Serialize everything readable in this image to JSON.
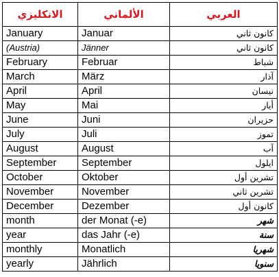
{
  "headers": {
    "english": "الانكليزي",
    "german": "الألماني",
    "arabic": "العربي"
  },
  "rows": [
    {
      "en": "January",
      "de": "Januar",
      "ar": "كانون ثاني"
    },
    {
      "en": "(Austria)",
      "de": "Jänner",
      "ar": "كانون ثاني"
    },
    {
      "en": "February",
      "de": "Februar",
      "ar": "شباط"
    },
    {
      "en": "March",
      "de": "März",
      "ar": "آذار"
    },
    {
      "en": "April",
      "de": "April",
      "ar": "نيسان"
    },
    {
      "en": "May",
      "de": "Mai",
      "ar": "أيار"
    },
    {
      "en": "June",
      "de": "Juni",
      "ar": "حزيران"
    },
    {
      "en": "July",
      "de": "Juli",
      "ar": "تموز"
    },
    {
      "en": "August",
      "de": "August",
      "ar": "آب"
    },
    {
      "en": "September",
      "de": "September",
      "ar": "ايلول"
    },
    {
      "en": "October",
      "de": "Oktober",
      "ar": "تشرين أول"
    },
    {
      "en": "November",
      "de": "November",
      "ar": "تشرين ثاني"
    },
    {
      "en": "December",
      "de": "Dezember",
      "ar": "كانون أول"
    },
    {
      "en": "month",
      "de": "der Monat (-e)",
      "ar": "شهر"
    },
    {
      "en": "year",
      "de": "das Jahr (-e)",
      "ar": "سنة"
    },
    {
      "en": "monthly",
      "de": "Monatlich",
      "ar": "شهريا"
    },
    {
      "en": "yearly",
      "de": "Jährlich",
      "ar": "سنويا"
    }
  ],
  "colors": {
    "header_text": "#e0141b",
    "border": "#000000",
    "text": "#000000"
  }
}
